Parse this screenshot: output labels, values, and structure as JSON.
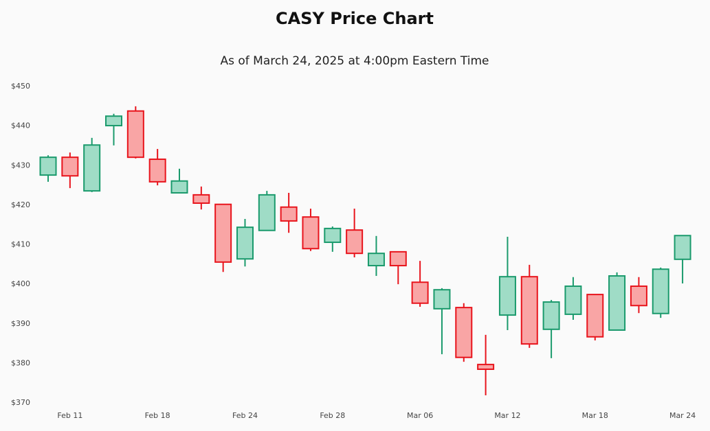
{
  "chart_data": {
    "type": "candlestick",
    "title": "CASY Price Chart",
    "subtitle": "As of March 24, 2025 at 4:00pm Eastern Time",
    "categories": [
      null,
      "Feb 11",
      null,
      null,
      null,
      "Feb 18",
      null,
      null,
      null,
      "Feb 24",
      null,
      null,
      null,
      "Feb 28",
      null,
      null,
      null,
      "Mar 06",
      null,
      null,
      null,
      "Mar 12",
      null,
      null,
      null,
      "Mar 18",
      null,
      null,
      null,
      "Mar 24"
    ],
    "open": [
      427.6,
      432.1,
      423.6,
      440.1,
      443.8,
      431.6,
      423.1,
      422.6,
      420.2,
      406.4,
      413.6,
      419.5,
      417.0,
      410.6,
      413.7,
      404.7,
      408.2,
      400.5,
      393.8,
      394.1,
      379.7,
      392.2,
      401.9,
      388.6,
      392.4,
      397.4,
      388.4,
      399.5,
      392.6,
      406.3
    ],
    "high": [
      432.6,
      433.3,
      437.0,
      443.1,
      445.0,
      434.2,
      429.2,
      424.7,
      420.2,
      416.5,
      423.6,
      423.1,
      419.1,
      414.6,
      419.1,
      412.2,
      408.2,
      405.9,
      399.0,
      395.2,
      387.2,
      412.0,
      404.9,
      396.0,
      401.8,
      397.4,
      403.0,
      401.8,
      404.2,
      412.3
    ],
    "low": [
      425.9,
      424.3,
      423.3,
      435.1,
      431.8,
      425.0,
      423.1,
      418.9,
      403.1,
      404.5,
      413.6,
      413.0,
      408.4,
      408.2,
      406.8,
      402.1,
      400.0,
      394.3,
      382.3,
      380.4,
      371.9,
      388.4,
      383.9,
      381.3,
      391.0,
      385.8,
      388.4,
      392.7,
      391.5,
      400.2
    ],
    "close": [
      432.1,
      427.4,
      435.2,
      442.5,
      432.1,
      425.9,
      426.1,
      420.5,
      405.6,
      414.4,
      422.6,
      416.0,
      409.0,
      414.1,
      407.8,
      407.8,
      404.7,
      395.2,
      398.6,
      381.5,
      378.5,
      401.9,
      384.9,
      395.5,
      399.5,
      386.7,
      402.1,
      394.6,
      403.8,
      412.3
    ],
    "up_color": "#1a9a6c",
    "up_fill": "#9fdcc6",
    "down_color": "#e8141c",
    "down_fill": "#f9a5a5",
    "ylim": [
      370,
      450
    ],
    "yticks": [
      {
        "value": 370,
        "label": "$370"
      },
      {
        "value": 380,
        "label": "$380"
      },
      {
        "value": 390,
        "label": "$390"
      },
      {
        "value": 400,
        "label": "$400"
      },
      {
        "value": 410,
        "label": "$410"
      },
      {
        "value": 420,
        "label": "$420"
      },
      {
        "value": 430,
        "label": "$430"
      },
      {
        "value": 440,
        "label": "$440"
      },
      {
        "value": 450,
        "label": "$450"
      }
    ],
    "grid": false
  }
}
